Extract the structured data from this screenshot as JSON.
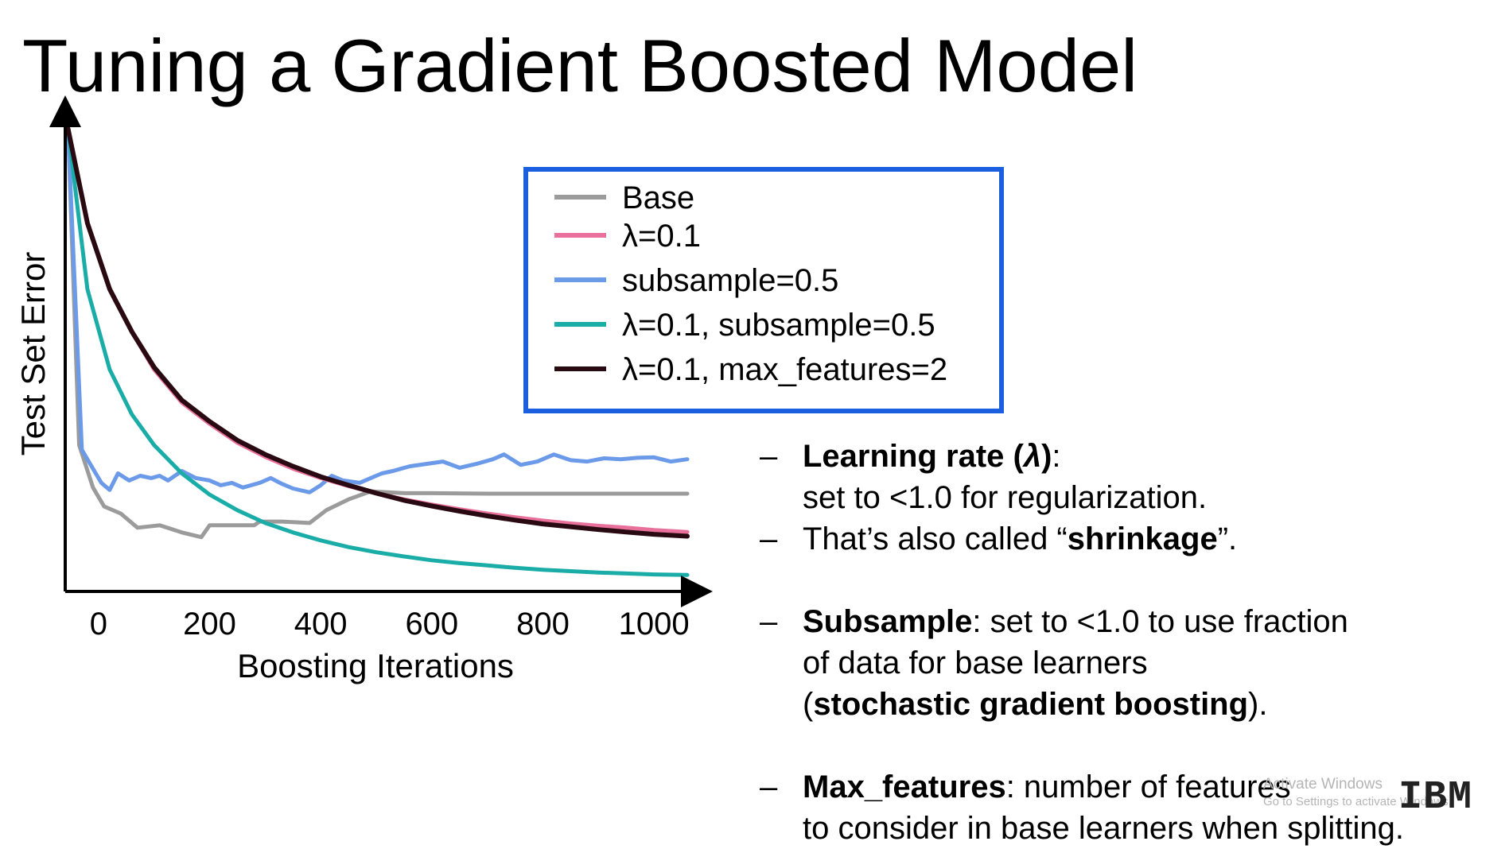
{
  "slide": {
    "title": "Tuning a Gradient Boosted Model",
    "bullets": [
      {
        "parts": [
          {
            "b": true,
            "t": "Learning rate ("
          },
          {
            "b": true,
            "i": true,
            "t": "λ"
          },
          {
            "b": true,
            "t": ")"
          },
          {
            "t": ":"
          }
        ],
        "line2": [
          {
            "t": "set to <1.0 for regularization."
          }
        ]
      },
      {
        "parts": [
          {
            "t": "That’s also called “"
          },
          {
            "b": true,
            "t": "shrinkage"
          },
          {
            "t": "”."
          }
        ],
        "gap_after": true
      },
      {
        "parts": [
          {
            "b": true,
            "t": "Subsample"
          },
          {
            "t": ": set to <1.0 to use fraction"
          }
        ],
        "line2": [
          {
            "t": "of data for base learners"
          }
        ],
        "line3": [
          {
            "t": "("
          },
          {
            "b": true,
            "t": "stochastic gradient boosting"
          },
          {
            "t": ")."
          }
        ],
        "gap_after": true
      },
      {
        "parts": [
          {
            "b": true,
            "t": "Max_features"
          },
          {
            "t": ": number of features"
          }
        ],
        "line2": [
          {
            "t": "to consider in base learners when splitting."
          }
        ]
      }
    ],
    "bullet_dash": "–",
    "watermark": {
      "line1": "Activate Windows",
      "line2": "Go to Settings to activate Windows."
    },
    "logo": "IBM"
  },
  "chart_data": {
    "type": "line",
    "xlabel": "Boosting Iterations",
    "ylabel": "Test Set Error",
    "xticks": [
      0,
      200,
      400,
      600,
      800,
      1000
    ],
    "xlim": [
      -60,
      1060
    ],
    "ylim": [
      0,
      1
    ],
    "grid": false,
    "legend_position": "top-center",
    "legend_border_color": "#1a5fe0",
    "series": [
      {
        "name": "Base",
        "color": "#9b9b9b",
        "x": [
          -55,
          -35,
          -10,
          10,
          40,
          70,
          110,
          150,
          185,
          200,
          240,
          280,
          290,
          330,
          380,
          410,
          450,
          490,
          520,
          550,
          600,
          700,
          800,
          900,
          1000,
          1060
        ],
        "y": [
          0.98,
          0.31,
          0.22,
          0.18,
          0.165,
          0.135,
          0.14,
          0.125,
          0.115,
          0.14,
          0.14,
          0.14,
          0.148,
          0.148,
          0.145,
          0.172,
          0.195,
          0.212,
          0.21,
          0.208,
          0.208,
          0.207,
          0.207,
          0.207,
          0.207,
          0.207
        ]
      },
      {
        "name": "λ=0.1",
        "color": "#e8709a",
        "x": [
          -55,
          -20,
          20,
          60,
          100,
          150,
          200,
          250,
          300,
          350,
          400,
          450,
          500,
          550,
          600,
          650,
          700,
          750,
          800,
          850,
          900,
          950,
          1000,
          1060
        ],
        "y": [
          0.98,
          0.78,
          0.64,
          0.55,
          0.47,
          0.4,
          0.355,
          0.315,
          0.285,
          0.26,
          0.24,
          0.223,
          0.208,
          0.195,
          0.184,
          0.174,
          0.165,
          0.157,
          0.15,
          0.144,
          0.139,
          0.135,
          0.13,
          0.126
        ]
      },
      {
        "name": "subsample=0.5",
        "color": "#6b9ae8",
        "x": [
          -55,
          -30,
          -10,
          5,
          20,
          35,
          55,
          75,
          95,
          110,
          125,
          150,
          175,
          200,
          220,
          240,
          260,
          290,
          310,
          330,
          350,
          380,
          400,
          420,
          440,
          470,
          490,
          510,
          530,
          560,
          590,
          620,
          650,
          680,
          710,
          730,
          760,
          790,
          820,
          850,
          880,
          910,
          940,
          970,
          1000,
          1030,
          1060
        ],
        "y": [
          0.98,
          0.3,
          0.26,
          0.23,
          0.215,
          0.25,
          0.235,
          0.245,
          0.24,
          0.245,
          0.235,
          0.255,
          0.24,
          0.235,
          0.225,
          0.23,
          0.22,
          0.23,
          0.24,
          0.228,
          0.218,
          0.21,
          0.225,
          0.245,
          0.235,
          0.23,
          0.24,
          0.25,
          0.255,
          0.265,
          0.27,
          0.275,
          0.262,
          0.27,
          0.28,
          0.29,
          0.268,
          0.275,
          0.29,
          0.278,
          0.275,
          0.282,
          0.28,
          0.283,
          0.284,
          0.275,
          0.28
        ]
      },
      {
        "name": "λ=0.1, subsample=0.5",
        "color": "#1aada8",
        "x": [
          -55,
          -20,
          20,
          60,
          100,
          150,
          200,
          250,
          300,
          350,
          400,
          450,
          500,
          550,
          600,
          650,
          700,
          750,
          800,
          850,
          900,
          950,
          1000,
          1060
        ],
        "y": [
          0.98,
          0.64,
          0.47,
          0.375,
          0.31,
          0.25,
          0.205,
          0.172,
          0.145,
          0.125,
          0.108,
          0.094,
          0.083,
          0.074,
          0.066,
          0.06,
          0.055,
          0.05,
          0.046,
          0.043,
          0.04,
          0.038,
          0.036,
          0.035
        ]
      },
      {
        "name": "λ=0.1, max_features=2",
        "color": "#2a0a12",
        "x": [
          -55,
          -20,
          20,
          60,
          100,
          150,
          200,
          250,
          300,
          350,
          400,
          450,
          500,
          550,
          600,
          650,
          700,
          750,
          800,
          850,
          900,
          950,
          1000,
          1060
        ],
        "y": [
          0.98,
          0.78,
          0.64,
          0.55,
          0.475,
          0.405,
          0.36,
          0.32,
          0.29,
          0.265,
          0.243,
          0.225,
          0.208,
          0.193,
          0.181,
          0.17,
          0.16,
          0.151,
          0.143,
          0.137,
          0.131,
          0.126,
          0.121,
          0.117
        ]
      }
    ]
  }
}
